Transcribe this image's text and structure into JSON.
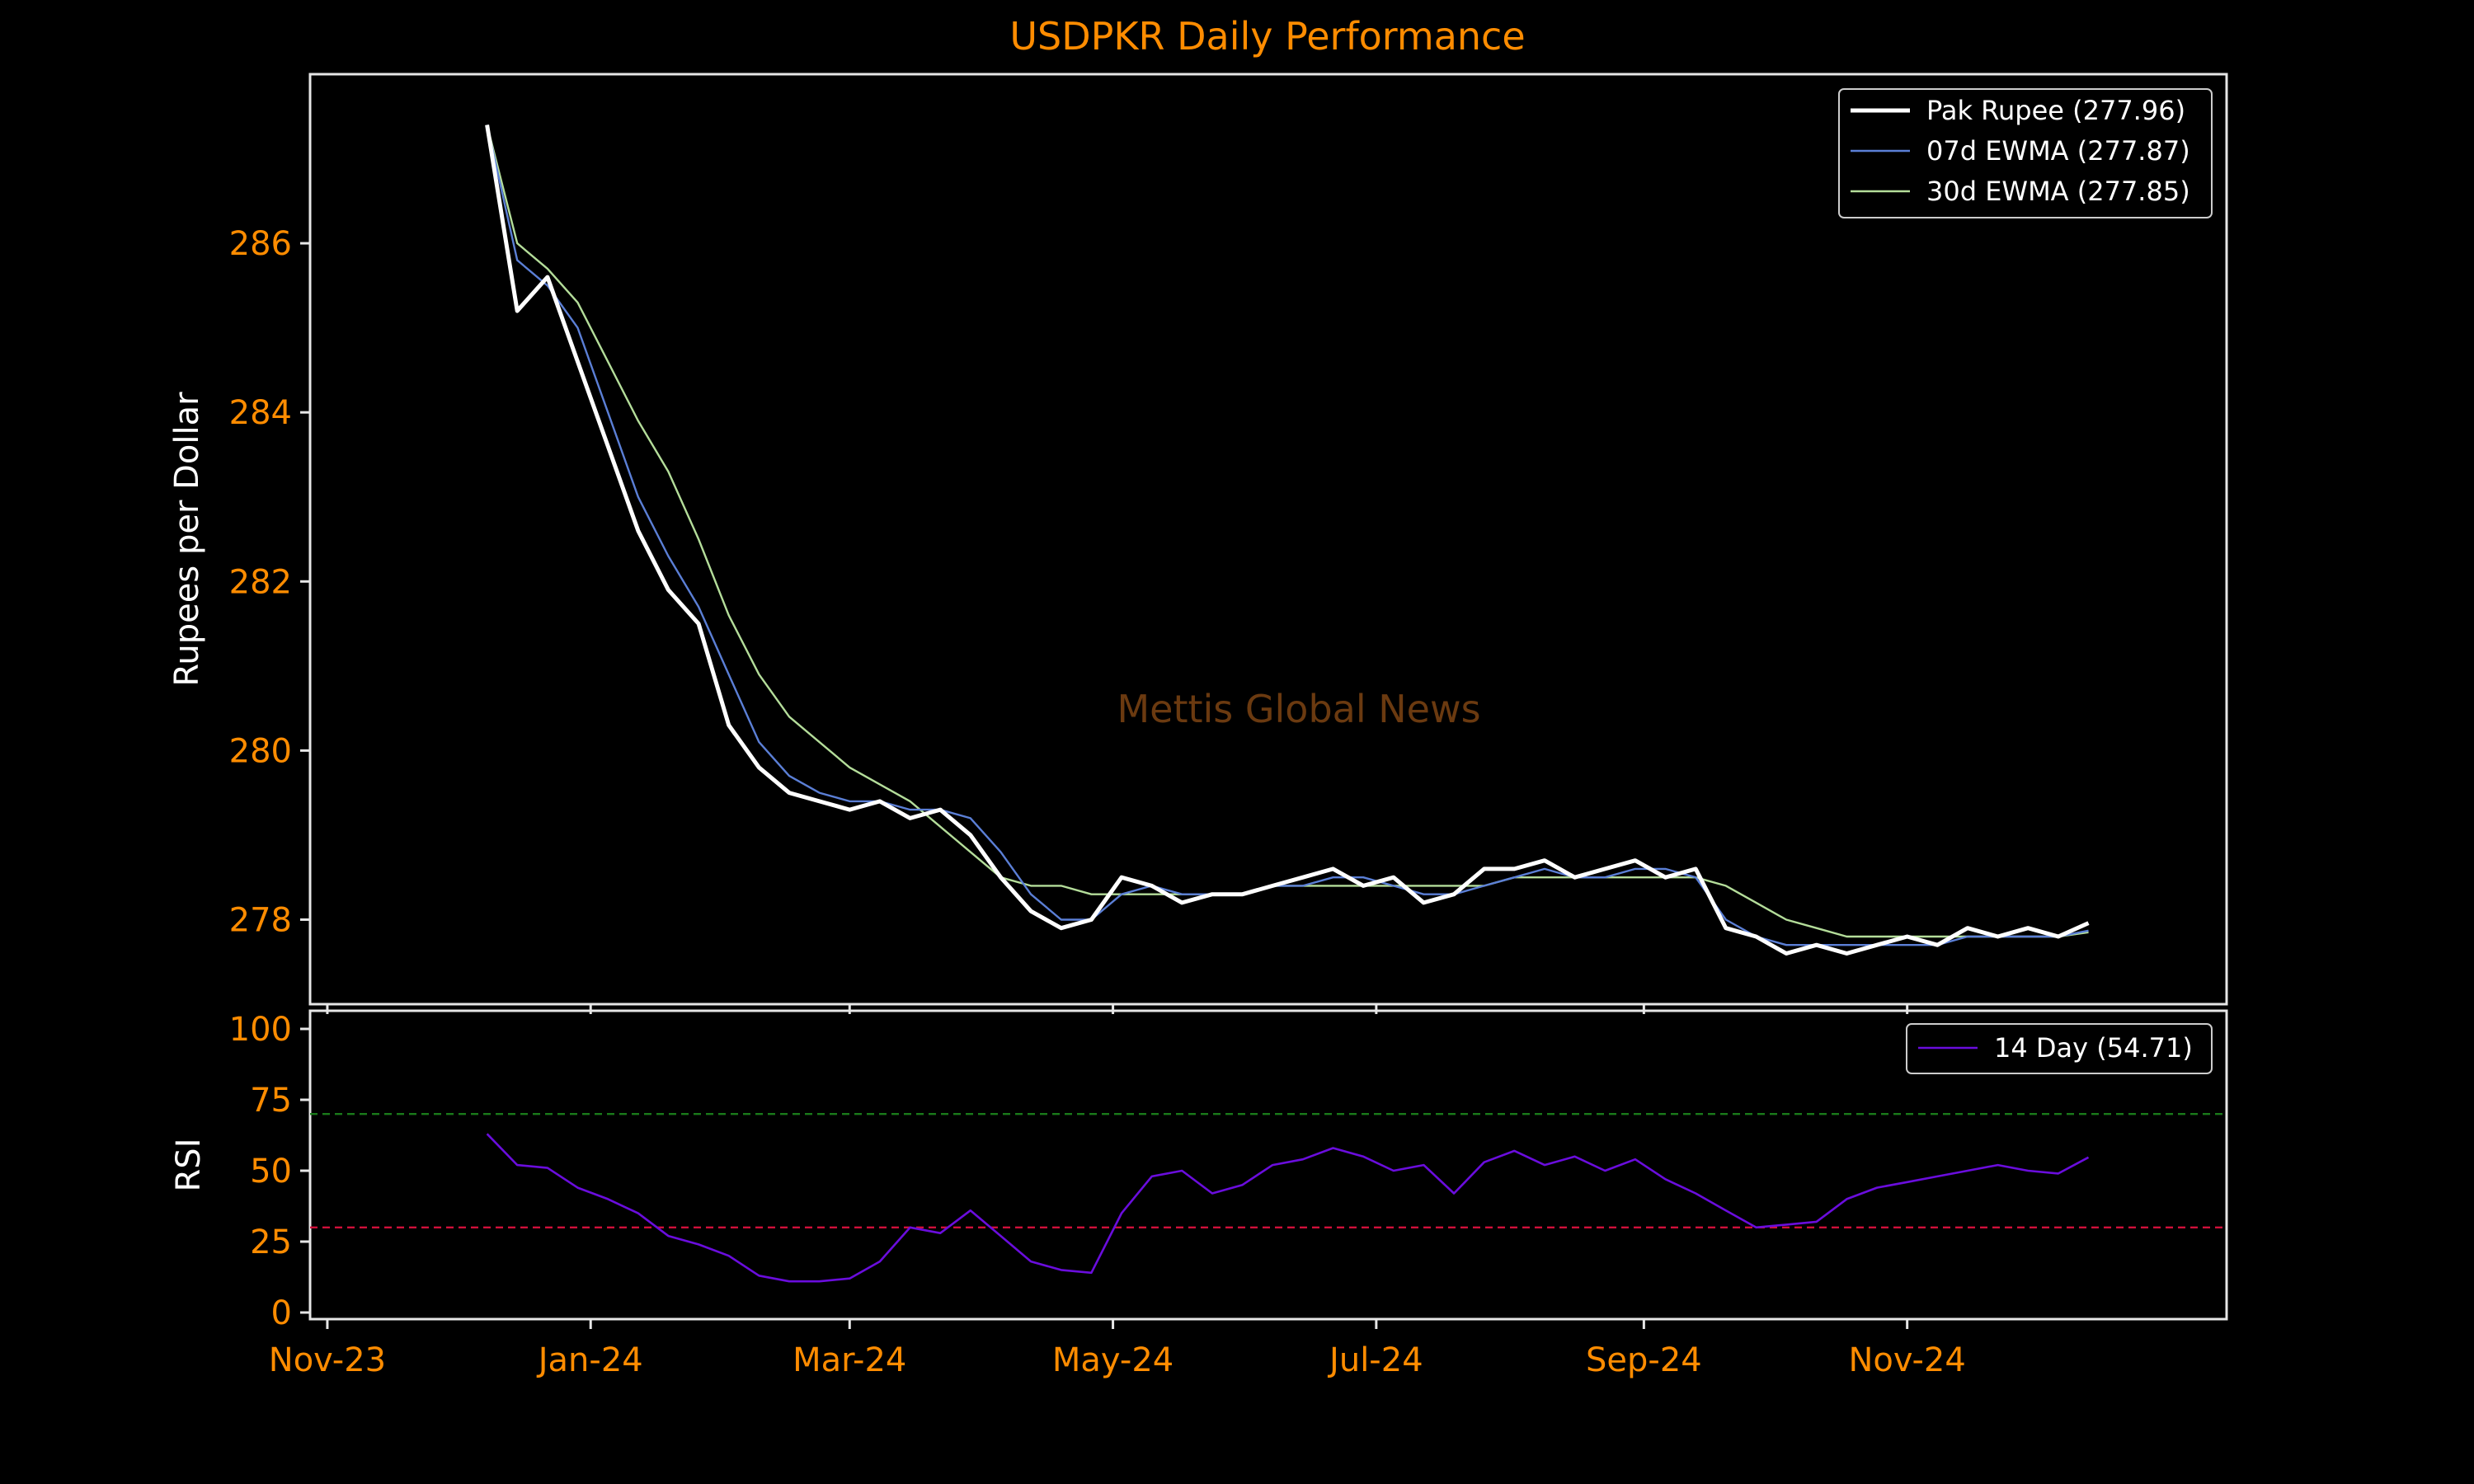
{
  "chart_data": [
    {
      "type": "line",
      "title": "USDPKR Daily Performance",
      "ylabel": "Rupees per Dollar",
      "watermark": "Mettis Global News",
      "ylim": [
        277.0,
        288.0
      ],
      "yticks": [
        278,
        280,
        282,
        284,
        286
      ],
      "grid": false,
      "legend_position": "top-right",
      "x": [
        "2023-12-08",
        "2023-12-15",
        "2023-12-22",
        "2023-12-29",
        "2024-01-05",
        "2024-01-12",
        "2024-01-19",
        "2024-01-26",
        "2024-02-02",
        "2024-02-09",
        "2024-02-16",
        "2024-02-23",
        "2024-03-01",
        "2024-03-08",
        "2024-03-15",
        "2024-03-22",
        "2024-03-29",
        "2024-04-05",
        "2024-04-12",
        "2024-04-19",
        "2024-04-26",
        "2024-05-03",
        "2024-05-10",
        "2024-05-17",
        "2024-05-24",
        "2024-05-31",
        "2024-06-07",
        "2024-06-14",
        "2024-06-21",
        "2024-06-28",
        "2024-07-05",
        "2024-07-12",
        "2024-07-19",
        "2024-07-26",
        "2024-08-02",
        "2024-08-09",
        "2024-08-16",
        "2024-08-23",
        "2024-08-30",
        "2024-09-06",
        "2024-09-13",
        "2024-09-20",
        "2024-09-27",
        "2024-10-04",
        "2024-10-11",
        "2024-10-18",
        "2024-10-25",
        "2024-11-01",
        "2024-11-08",
        "2024-11-15",
        "2024-11-22",
        "2024-11-29",
        "2024-12-06",
        "2024-12-13"
      ],
      "series": [
        {
          "name": "Pak Rupee (277.96)",
          "color": "#ffffff",
          "values": [
            287.4,
            285.2,
            285.6,
            284.6,
            283.6,
            282.6,
            281.9,
            281.5,
            280.3,
            279.8,
            279.5,
            279.4,
            279.3,
            279.4,
            279.2,
            279.3,
            279.0,
            278.5,
            278.1,
            277.9,
            278.0,
            278.5,
            278.4,
            278.2,
            278.3,
            278.3,
            278.4,
            278.5,
            278.6,
            278.4,
            278.5,
            278.2,
            278.3,
            278.6,
            278.6,
            278.7,
            278.5,
            278.6,
            278.7,
            278.5,
            278.6,
            277.9,
            277.8,
            277.6,
            277.7,
            277.6,
            277.7,
            277.8,
            277.7,
            277.9,
            277.8,
            277.9,
            277.8,
            277.96
          ]
        },
        {
          "name": "07d EWMA (277.87)",
          "color": "#5b7fd6",
          "values": [
            287.4,
            285.8,
            285.5,
            285.0,
            284.0,
            283.0,
            282.3,
            281.7,
            280.9,
            280.1,
            279.7,
            279.5,
            279.4,
            279.4,
            279.3,
            279.3,
            279.2,
            278.8,
            278.3,
            278.0,
            278.0,
            278.3,
            278.4,
            278.3,
            278.3,
            278.3,
            278.4,
            278.4,
            278.5,
            278.5,
            278.4,
            278.3,
            278.3,
            278.4,
            278.5,
            278.6,
            278.5,
            278.5,
            278.6,
            278.6,
            278.5,
            278.0,
            277.8,
            277.7,
            277.7,
            277.7,
            277.7,
            277.7,
            277.7,
            277.8,
            277.8,
            277.8,
            277.8,
            277.87
          ]
        },
        {
          "name": "30d EWMA (277.85)",
          "color": "#b4dd9a",
          "values": [
            287.4,
            286.0,
            285.7,
            285.3,
            284.6,
            283.9,
            283.3,
            282.5,
            281.6,
            280.9,
            280.4,
            280.1,
            279.8,
            279.6,
            279.4,
            279.1,
            278.8,
            278.5,
            278.4,
            278.4,
            278.3,
            278.3,
            278.3,
            278.3,
            278.3,
            278.3,
            278.4,
            278.4,
            278.4,
            278.4,
            278.4,
            278.4,
            278.4,
            278.4,
            278.5,
            278.5,
            278.5,
            278.5,
            278.5,
            278.5,
            278.5,
            278.4,
            278.2,
            278.0,
            277.9,
            277.8,
            277.8,
            277.8,
            277.8,
            277.8,
            277.8,
            277.8,
            277.8,
            277.85
          ]
        }
      ]
    },
    {
      "type": "line",
      "ylabel": "RSI",
      "ylim": [
        0,
        100
      ],
      "yticks": [
        0,
        25,
        50,
        75,
        100
      ],
      "reference_lines": [
        {
          "value": 70,
          "color": "#1a7a1a",
          "style": "dashed"
        },
        {
          "value": 30,
          "color": "#d0103a",
          "style": "dashed"
        }
      ],
      "legend_position": "top-right",
      "xticks": [
        "Nov-23",
        "Jan-24",
        "Mar-24",
        "May-24",
        "Jul-24",
        "Sep-24",
        "Nov-24"
      ],
      "xtick_dates": [
        "2023-11-01",
        "2024-01-01",
        "2024-03-01",
        "2024-05-01",
        "2024-07-01",
        "2024-09-01",
        "2024-11-01"
      ],
      "xlim": [
        "2023-10-28",
        "2025-01-14"
      ],
      "x": [
        "2023-12-08",
        "2023-12-15",
        "2023-12-22",
        "2023-12-29",
        "2024-01-05",
        "2024-01-12",
        "2024-01-19",
        "2024-01-26",
        "2024-02-02",
        "2024-02-09",
        "2024-02-16",
        "2024-02-23",
        "2024-03-01",
        "2024-03-08",
        "2024-03-15",
        "2024-03-22",
        "2024-03-29",
        "2024-04-05",
        "2024-04-12",
        "2024-04-19",
        "2024-04-26",
        "2024-05-03",
        "2024-05-10",
        "2024-05-17",
        "2024-05-24",
        "2024-05-31",
        "2024-06-07",
        "2024-06-14",
        "2024-06-21",
        "2024-06-28",
        "2024-07-05",
        "2024-07-12",
        "2024-07-19",
        "2024-07-26",
        "2024-08-02",
        "2024-08-09",
        "2024-08-16",
        "2024-08-23",
        "2024-08-30",
        "2024-09-06",
        "2024-09-13",
        "2024-09-20",
        "2024-09-27",
        "2024-10-04",
        "2024-10-11",
        "2024-10-18",
        "2024-10-25",
        "2024-11-01",
        "2024-11-08",
        "2024-11-15",
        "2024-11-22",
        "2024-11-29",
        "2024-12-06",
        "2024-12-13"
      ],
      "series": [
        {
          "name": "14 Day (54.71)",
          "color": "#6a0ddd",
          "values": [
            63,
            52,
            51,
            44,
            40,
            35,
            27,
            24,
            20,
            13,
            11,
            11,
            12,
            18,
            30,
            28,
            36,
            27,
            18,
            15,
            14,
            35,
            48,
            50,
            42,
            45,
            52,
            54,
            58,
            55,
            50,
            52,
            42,
            53,
            57,
            52,
            55,
            50,
            54,
            47,
            42,
            36,
            30,
            31,
            32,
            40,
            44,
            46,
            48,
            50,
            52,
            50,
            49,
            54.71
          ]
        }
      ]
    }
  ]
}
